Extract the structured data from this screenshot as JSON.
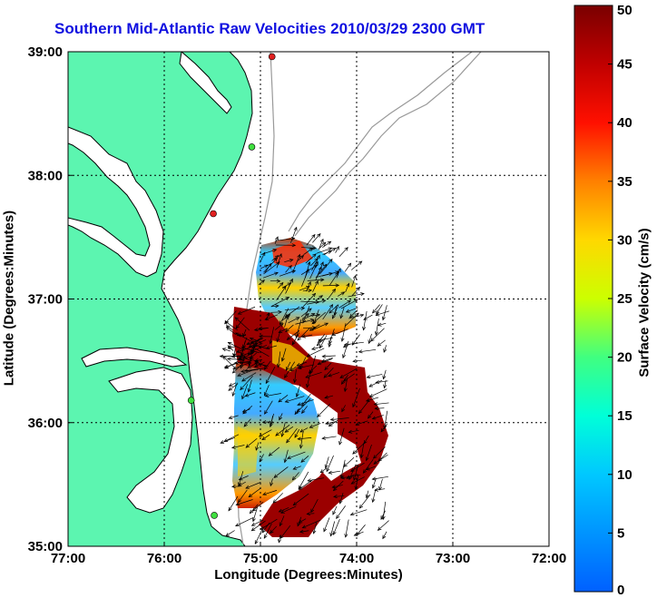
{
  "chart_data": {
    "type": "map",
    "title": "Southern Mid-Atlantic Raw Velocities 2010/03/29 2300 GMT",
    "xlabel": "Longitude (Degrees:Minutes)",
    "ylabel": "Latitude (Degrees:Minutes)",
    "x_range": [
      -77,
      -72
    ],
    "y_range": [
      35,
      39
    ],
    "x_ticks": [
      {
        "value": -77,
        "label": "77:00"
      },
      {
        "value": -76,
        "label": "76:00"
      },
      {
        "value": -75,
        "label": "75:00"
      },
      {
        "value": -74,
        "label": "74:00"
      },
      {
        "value": -73,
        "label": "73:00"
      },
      {
        "value": -72,
        "label": "72:00"
      }
    ],
    "y_ticks": [
      {
        "value": 35,
        "label": "35:00"
      },
      {
        "value": 36,
        "label": "36:00"
      },
      {
        "value": 37,
        "label": "37:00"
      },
      {
        "value": 38,
        "label": "38:00"
      },
      {
        "value": 39,
        "label": "39:00"
      }
    ],
    "grid": true,
    "colorbar": {
      "label": "Surface Velocity (cm/s)",
      "min": 0,
      "max": 50,
      "ticks": [
        "0",
        "5",
        "10",
        "15",
        "20",
        "25",
        "30",
        "35",
        "40",
        "45",
        "50"
      ]
    },
    "land_color": "#5cf5b0",
    "stations": [
      {
        "lon": -74.88,
        "lat": 38.96,
        "color": "#e02020"
      },
      {
        "lon": -75.09,
        "lat": 38.23,
        "color": "#40e040"
      },
      {
        "lon": -75.49,
        "lat": 37.69,
        "color": "#e02020"
      },
      {
        "lon": -75.72,
        "lat": 36.18,
        "color": "#40e040"
      },
      {
        "lon": -75.48,
        "lat": 35.25,
        "color": "#40e040"
      }
    ]
  }
}
